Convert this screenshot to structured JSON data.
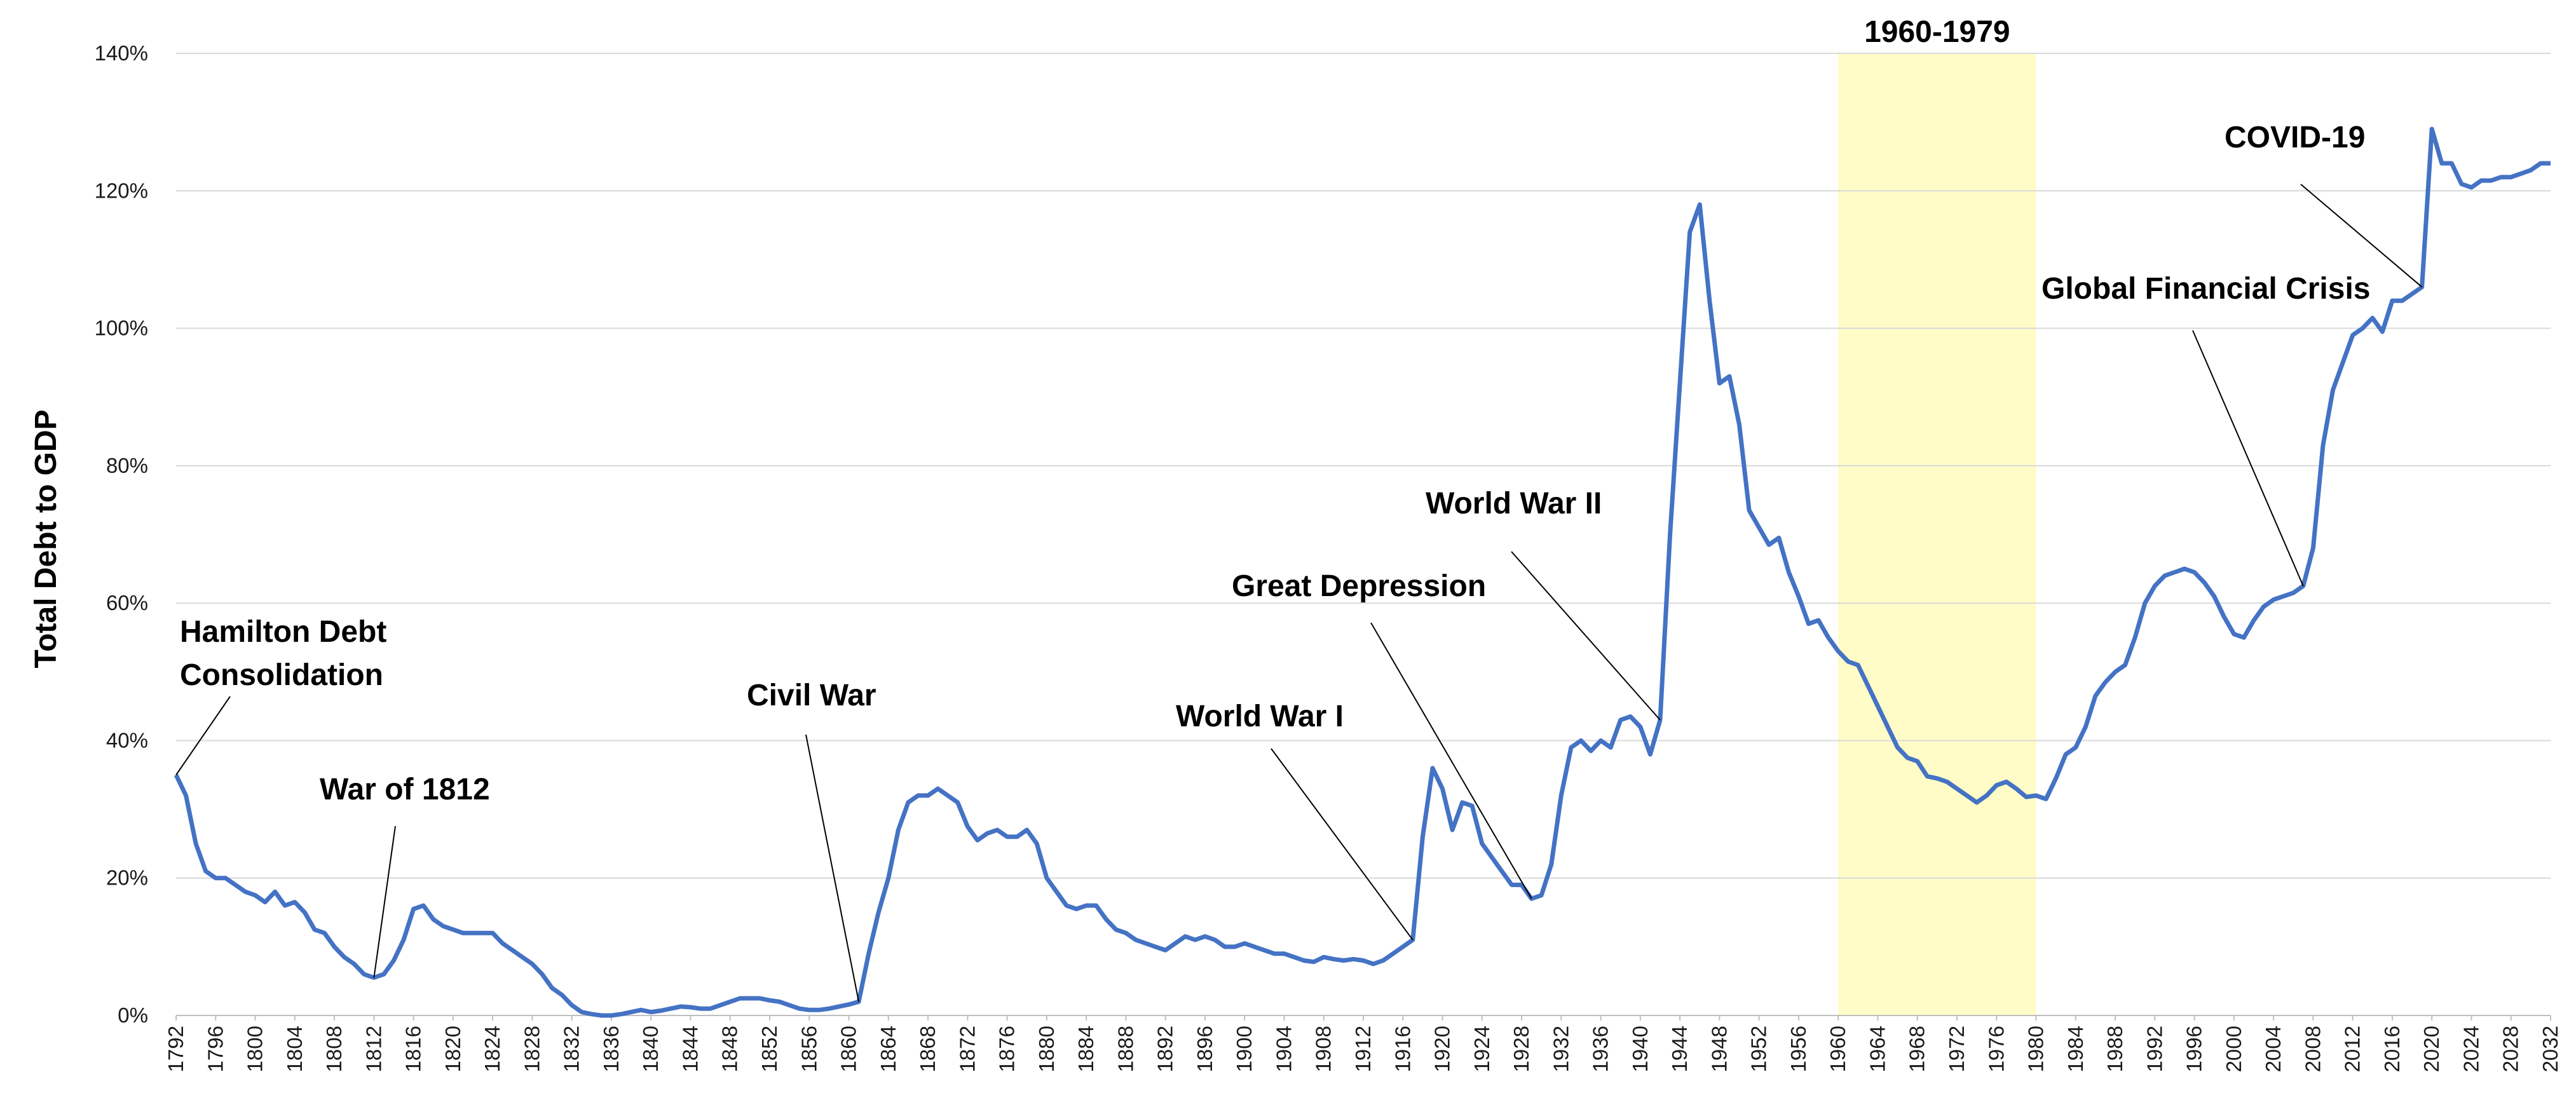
{
  "chart_data": {
    "type": "line",
    "title": "",
    "ylabel": "Total Debt to GDP",
    "xlabel": "",
    "xlim": [
      1792,
      2032
    ],
    "ylim": [
      0,
      140
    ],
    "yticks": [
      0,
      20,
      40,
      60,
      80,
      100,
      120,
      140
    ],
    "ytick_labels": [
      "0%",
      "20%",
      "40%",
      "60%",
      "80%",
      "100%",
      "120%",
      "140%"
    ],
    "xtick_step": 4,
    "grid": "horizontal",
    "line_color": "#4472C4",
    "highlight": {
      "label": "1960-1979",
      "x_start": 1960,
      "x_end": 1980,
      "color": "#FFFCC7"
    },
    "series": [
      {
        "name": "",
        "points": [
          [
            1792,
            35
          ],
          [
            1793,
            32
          ],
          [
            1794,
            25
          ],
          [
            1795,
            21
          ],
          [
            1796,
            20
          ],
          [
            1797,
            20
          ],
          [
            1798,
            19
          ],
          [
            1799,
            18
          ],
          [
            1800,
            17.5
          ],
          [
            1801,
            16.5
          ],
          [
            1802,
            18
          ],
          [
            1803,
            16
          ],
          [
            1804,
            16.5
          ],
          [
            1805,
            15
          ],
          [
            1806,
            12.5
          ],
          [
            1807,
            12
          ],
          [
            1808,
            10
          ],
          [
            1809,
            8.5
          ],
          [
            1810,
            7.5
          ],
          [
            1811,
            6
          ],
          [
            1812,
            5.5
          ],
          [
            1813,
            6
          ],
          [
            1814,
            8
          ],
          [
            1815,
            11
          ],
          [
            1816,
            15.5
          ],
          [
            1817,
            16
          ],
          [
            1818,
            14
          ],
          [
            1819,
            13
          ],
          [
            1820,
            12.5
          ],
          [
            1821,
            12
          ],
          [
            1822,
            12
          ],
          [
            1823,
            12
          ],
          [
            1824,
            12
          ],
          [
            1825,
            10.5
          ],
          [
            1826,
            9.5
          ],
          [
            1827,
            8.5
          ],
          [
            1828,
            7.5
          ],
          [
            1829,
            6
          ],
          [
            1830,
            4
          ],
          [
            1831,
            3
          ],
          [
            1832,
            1.5
          ],
          [
            1833,
            0.5
          ],
          [
            1834,
            0.2
          ],
          [
            1835,
            0
          ],
          [
            1836,
            0
          ],
          [
            1837,
            0.2
          ],
          [
            1838,
            0.5
          ],
          [
            1839,
            0.8
          ],
          [
            1840,
            0.5
          ],
          [
            1841,
            0.7
          ],
          [
            1842,
            1
          ],
          [
            1843,
            1.3
          ],
          [
            1844,
            1.2
          ],
          [
            1845,
            1
          ],
          [
            1846,
            1
          ],
          [
            1847,
            1.5
          ],
          [
            1848,
            2
          ],
          [
            1849,
            2.5
          ],
          [
            1850,
            2.5
          ],
          [
            1851,
            2.5
          ],
          [
            1852,
            2.2
          ],
          [
            1853,
            2
          ],
          [
            1854,
            1.5
          ],
          [
            1855,
            1
          ],
          [
            1856,
            0.8
          ],
          [
            1857,
            0.8
          ],
          [
            1858,
            1
          ],
          [
            1859,
            1.3
          ],
          [
            1860,
            1.6
          ],
          [
            1861,
            2
          ],
          [
            1862,
            9
          ],
          [
            1863,
            15
          ],
          [
            1864,
            20
          ],
          [
            1865,
            27
          ],
          [
            1866,
            31
          ],
          [
            1867,
            32
          ],
          [
            1868,
            32
          ],
          [
            1869,
            33
          ],
          [
            1870,
            32
          ],
          [
            1871,
            31
          ],
          [
            1872,
            27.5
          ],
          [
            1873,
            25.5
          ],
          [
            1874,
            26.5
          ],
          [
            1875,
            27
          ],
          [
            1876,
            26
          ],
          [
            1877,
            26
          ],
          [
            1878,
            27
          ],
          [
            1879,
            25
          ],
          [
            1880,
            20
          ],
          [
            1881,
            18
          ],
          [
            1882,
            16
          ],
          [
            1883,
            15.5
          ],
          [
            1884,
            16
          ],
          [
            1885,
            16
          ],
          [
            1886,
            14
          ],
          [
            1887,
            12.5
          ],
          [
            1888,
            12
          ],
          [
            1889,
            11
          ],
          [
            1890,
            10.5
          ],
          [
            1891,
            10
          ],
          [
            1892,
            9.5
          ],
          [
            1893,
            10.5
          ],
          [
            1894,
            11.5
          ],
          [
            1895,
            11
          ],
          [
            1896,
            11.5
          ],
          [
            1897,
            11
          ],
          [
            1898,
            10
          ],
          [
            1899,
            10
          ],
          [
            1900,
            10.5
          ],
          [
            1901,
            10
          ],
          [
            1902,
            9.5
          ],
          [
            1903,
            9
          ],
          [
            1904,
            9
          ],
          [
            1905,
            8.5
          ],
          [
            1906,
            8
          ],
          [
            1907,
            7.8
          ],
          [
            1908,
            8.5
          ],
          [
            1909,
            8.2
          ],
          [
            1910,
            8
          ],
          [
            1911,
            8.2
          ],
          [
            1912,
            8
          ],
          [
            1913,
            7.5
          ],
          [
            1914,
            8
          ],
          [
            1915,
            9
          ],
          [
            1916,
            10
          ],
          [
            1917,
            11
          ],
          [
            1918,
            26
          ],
          [
            1919,
            36
          ],
          [
            1920,
            33
          ],
          [
            1921,
            27
          ],
          [
            1922,
            31
          ],
          [
            1923,
            30.5
          ],
          [
            1924,
            25
          ],
          [
            1925,
            23
          ],
          [
            1926,
            21
          ],
          [
            1927,
            19
          ],
          [
            1928,
            19
          ],
          [
            1929,
            17
          ],
          [
            1930,
            17.5
          ],
          [
            1931,
            22
          ],
          [
            1932,
            32
          ],
          [
            1933,
            39
          ],
          [
            1934,
            40
          ],
          [
            1935,
            38.5
          ],
          [
            1936,
            40
          ],
          [
            1937,
            39
          ],
          [
            1938,
            43
          ],
          [
            1939,
            43.5
          ],
          [
            1940,
            42
          ],
          [
            1941,
            38
          ],
          [
            1942,
            43
          ],
          [
            1943,
            70
          ],
          [
            1944,
            92
          ],
          [
            1945,
            114
          ],
          [
            1946,
            118
          ],
          [
            1947,
            104
          ],
          [
            1948,
            92
          ],
          [
            1949,
            93
          ],
          [
            1950,
            86
          ],
          [
            1951,
            73.5
          ],
          [
            1952,
            71
          ],
          [
            1953,
            68.5
          ],
          [
            1954,
            69.5
          ],
          [
            1955,
            64.5
          ],
          [
            1956,
            61
          ],
          [
            1957,
            57
          ],
          [
            1958,
            57.5
          ],
          [
            1959,
            55
          ],
          [
            1960,
            53
          ],
          [
            1961,
            51.5
          ],
          [
            1962,
            51
          ],
          [
            1963,
            48
          ],
          [
            1964,
            45
          ],
          [
            1965,
            42
          ],
          [
            1966,
            39
          ],
          [
            1967,
            37.5
          ],
          [
            1968,
            37
          ],
          [
            1969,
            34.8
          ],
          [
            1970,
            34.5
          ],
          [
            1971,
            34
          ],
          [
            1972,
            33
          ],
          [
            1973,
            32
          ],
          [
            1974,
            31
          ],
          [
            1975,
            32
          ],
          [
            1976,
            33.5
          ],
          [
            1977,
            34
          ],
          [
            1978,
            33
          ],
          [
            1979,
            31.8
          ],
          [
            1980,
            32
          ],
          [
            1981,
            31.5
          ],
          [
            1982,
            34.5
          ],
          [
            1983,
            38
          ],
          [
            1984,
            39
          ],
          [
            1985,
            42
          ],
          [
            1986,
            46.5
          ],
          [
            1987,
            48.5
          ],
          [
            1988,
            50
          ],
          [
            1989,
            51
          ],
          [
            1990,
            55
          ],
          [
            1991,
            60
          ],
          [
            1992,
            62.5
          ],
          [
            1993,
            64
          ],
          [
            1994,
            64.5
          ],
          [
            1995,
            65
          ],
          [
            1996,
            64.5
          ],
          [
            1997,
            63
          ],
          [
            1998,
            61
          ],
          [
            1999,
            58
          ],
          [
            2000,
            55.5
          ],
          [
            2001,
            55
          ],
          [
            2002,
            57.5
          ],
          [
            2003,
            59.5
          ],
          [
            2004,
            60.5
          ],
          [
            2005,
            61
          ],
          [
            2006,
            61.5
          ],
          [
            2007,
            62.5
          ],
          [
            2008,
            68
          ],
          [
            2009,
            83
          ],
          [
            2010,
            91
          ],
          [
            2011,
            95
          ],
          [
            2012,
            99
          ],
          [
            2013,
            100
          ],
          [
            2014,
            101.5
          ],
          [
            2015,
            99.5
          ],
          [
            2016,
            104
          ],
          [
            2017,
            104
          ],
          [
            2018,
            105
          ],
          [
            2019,
            106
          ],
          [
            2020,
            129
          ],
          [
            2021,
            124
          ],
          [
            2022,
            124
          ],
          [
            2023,
            121
          ],
          [
            2024,
            120.5
          ],
          [
            2025,
            121.5
          ],
          [
            2026,
            121.5
          ],
          [
            2027,
            122
          ],
          [
            2028,
            122
          ],
          [
            2029,
            122.5
          ],
          [
            2030,
            123
          ],
          [
            2031,
            124
          ],
          [
            2032,
            124
          ]
        ]
      }
    ],
    "annotations": [
      {
        "lines": [
          "Hamilton Debt",
          "Consolidation"
        ],
        "x": 1792,
        "y": 35
      },
      {
        "lines": [
          "War of 1812"
        ],
        "x": 1812,
        "y": 5.5
      },
      {
        "lines": [
          "Civil War"
        ],
        "x": 1861,
        "y": 2
      },
      {
        "lines": [
          "World War I"
        ],
        "x": 1917,
        "y": 11
      },
      {
        "lines": [
          "Great Depression"
        ],
        "x": 1929,
        "y": 17
      },
      {
        "lines": [
          "World War II"
        ],
        "x": 1942,
        "y": 43
      },
      {
        "lines": [
          "Global Financial Crisis"
        ],
        "x": 2007,
        "y": 62.5
      },
      {
        "lines": [
          "COVID-19"
        ],
        "x": 2019,
        "y": 106
      }
    ]
  }
}
